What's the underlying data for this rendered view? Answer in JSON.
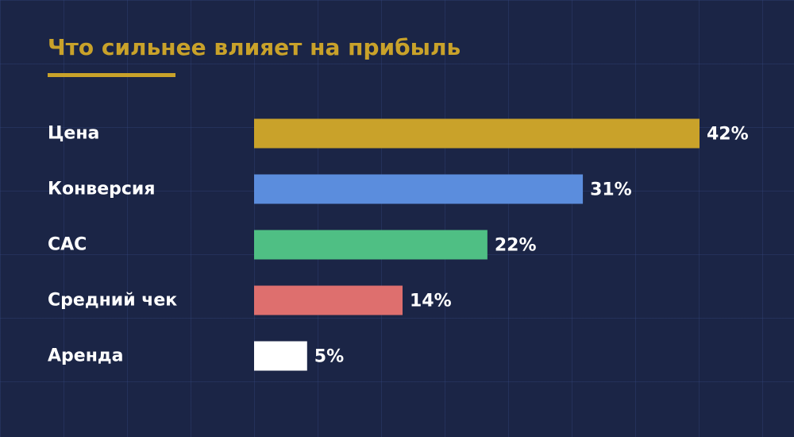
{
  "colors": {
    "background": "#1b2546",
    "accent": "#c9a22a",
    "text": "#ffffff"
  },
  "chart_data": {
    "type": "bar",
    "orientation": "horizontal",
    "title": "Что сильнее влияет на прибыль",
    "categories": [
      "Цена",
      "Конверсия",
      "CAC",
      "Средний чек",
      "Аренда"
    ],
    "values": [
      42,
      31,
      22,
      14,
      5
    ],
    "value_labels": [
      "42%",
      "31%",
      "22%",
      "14%",
      "5%"
    ],
    "bar_colors": [
      "#c9a22a",
      "#5b8ddd",
      "#4fbf84",
      "#de6f6e",
      "#ffffff"
    ],
    "xlim": [
      0,
      42
    ],
    "grid": true
  }
}
